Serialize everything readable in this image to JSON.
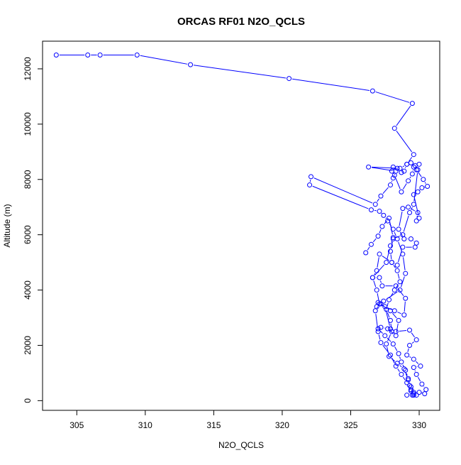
{
  "chart_data": {
    "type": "line",
    "title": "ORCAS RF01 N2O_QCLS",
    "xlabel": "N2O_QCLS",
    "ylabel": "Altitude (m)",
    "xlim": [
      302.5,
      331.5
    ],
    "ylim": [
      -350,
      13000
    ],
    "x_ticks": [
      305,
      310,
      315,
      320,
      325,
      330
    ],
    "y_ticks": [
      0,
      2000,
      4000,
      6000,
      8000,
      10000,
      12000
    ],
    "grid": false,
    "legend": "none",
    "markers": "open circles",
    "color": "#0000ff",
    "series": [
      {
        "points": [
          [
            329.6,
            200
          ],
          [
            329.4,
            350
          ],
          [
            329.3,
            550
          ],
          [
            329.2,
            800
          ],
          [
            329.0,
            1100
          ],
          [
            328.7,
            1400
          ],
          [
            328.5,
            1700
          ],
          [
            328.1,
            2050
          ],
          [
            327.5,
            2350
          ],
          [
            327.0,
            2600
          ],
          [
            327.2,
            2650
          ],
          [
            327.7,
            2600
          ],
          [
            328.3,
            2350
          ],
          [
            328.5,
            2900
          ],
          [
            327.9,
            3250
          ],
          [
            327.0,
            3550
          ],
          [
            326.9,
            3400
          ],
          [
            327.2,
            3500
          ],
          [
            327.4,
            3600
          ],
          [
            328.6,
            4000
          ],
          [
            329.0,
            4600
          ],
          [
            328.8,
            5300
          ],
          [
            328.4,
            5850
          ],
          [
            328.1,
            6200
          ],
          [
            327.7,
            6500
          ],
          [
            327.4,
            6700
          ],
          [
            327.1,
            6850
          ],
          [
            326.5,
            6900
          ],
          [
            322.0,
            7800
          ],
          [
            322.1,
            8100
          ],
          [
            326.8,
            7100
          ],
          [
            327.2,
            7400
          ],
          [
            327.9,
            7800
          ],
          [
            328.1,
            8050
          ],
          [
            328.3,
            8300
          ],
          [
            326.3,
            8450
          ],
          [
            328.6,
            8400
          ],
          [
            329.1,
            8550
          ],
          [
            329.6,
            8900
          ],
          [
            328.2,
            9850
          ],
          [
            329.5,
            10750
          ],
          [
            326.6,
            11200
          ],
          [
            320.5,
            11650
          ],
          [
            313.3,
            12150
          ],
          [
            309.4,
            12500
          ],
          [
            306.7,
            12500
          ],
          [
            305.8,
            12500
          ],
          [
            303.5,
            12500
          ]
        ]
      },
      {
        "points": [
          [
            329.1,
            200
          ],
          [
            329.6,
            250
          ],
          [
            330.0,
            300
          ],
          [
            330.4,
            250
          ],
          [
            330.5,
            400
          ],
          [
            330.2,
            600
          ],
          [
            329.8,
            950
          ],
          [
            329.6,
            1200
          ],
          [
            330.1,
            1250
          ],
          [
            329.6,
            1500
          ],
          [
            329.1,
            1650
          ],
          [
            329.3,
            2000
          ],
          [
            329.8,
            2200
          ],
          [
            329.3,
            2550
          ],
          [
            328.3,
            2500
          ],
          [
            327.9,
            2600
          ],
          [
            327.5,
            3400
          ],
          [
            328.2,
            3250
          ],
          [
            328.9,
            3100
          ],
          [
            329.0,
            3700
          ],
          [
            328.3,
            4150
          ],
          [
            327.3,
            4150
          ],
          [
            327.1,
            4450
          ],
          [
            326.6,
            4450
          ],
          [
            326.9,
            4700
          ],
          [
            327.1,
            5300
          ],
          [
            328.0,
            5000
          ],
          [
            328.4,
            4900
          ],
          [
            328.8,
            5550
          ],
          [
            329.7,
            5550
          ],
          [
            329.8,
            5700
          ],
          [
            329.4,
            5850
          ],
          [
            328.9,
            5850
          ],
          [
            328.5,
            6200
          ],
          [
            328.8,
            6950
          ],
          [
            329.2,
            7000
          ],
          [
            329.9,
            6800
          ],
          [
            329.8,
            6500
          ],
          [
            330.0,
            6600
          ],
          [
            329.6,
            7450
          ],
          [
            329.9,
            7550
          ],
          [
            330.2,
            7700
          ],
          [
            330.6,
            7750
          ],
          [
            330.3,
            8000
          ],
          [
            329.8,
            8350
          ],
          [
            330.0,
            8550
          ],
          [
            329.7,
            8500
          ],
          [
            329.4,
            8600
          ],
          [
            329.1,
            8550
          ],
          [
            328.9,
            8300
          ],
          [
            328.7,
            8250
          ],
          [
            328.4,
            8400
          ],
          [
            328.1,
            8450
          ],
          [
            328.0,
            8300
          ],
          [
            328.2,
            8150
          ],
          [
            328.7,
            7550
          ],
          [
            329.2,
            7950
          ],
          [
            329.5,
            8200
          ],
          [
            329.6,
            8450
          ],
          [
            329.9,
            8350
          ],
          [
            329.6,
            7100
          ],
          [
            329.3,
            6800
          ],
          [
            328.8,
            6000
          ],
          [
            328.1,
            5850
          ],
          [
            327.9,
            5400
          ],
          [
            328.0,
            5000
          ],
          [
            328.4,
            4700
          ],
          [
            328.6,
            4300
          ],
          [
            328.2,
            4000
          ],
          [
            327.8,
            3650
          ],
          [
            327.6,
            3300
          ],
          [
            327.9,
            2900
          ],
          [
            328.0,
            2500
          ],
          [
            327.6,
            2050
          ],
          [
            327.8,
            1600
          ],
          [
            328.4,
            1350
          ],
          [
            328.9,
            1150
          ],
          [
            329.2,
            750
          ],
          [
            329.4,
            500
          ],
          [
            329.5,
            200
          ]
        ]
      },
      {
        "points": [
          [
            326.1,
            5350
          ],
          [
            326.5,
            5650
          ],
          [
            327.0,
            5950
          ],
          [
            327.3,
            6300
          ],
          [
            327.8,
            6600
          ],
          [
            328.1,
            5900
          ],
          [
            327.9,
            5600
          ],
          [
            327.6,
            5000
          ],
          [
            326.6,
            4450
          ],
          [
            326.9,
            4000
          ],
          [
            327.1,
            3500
          ],
          [
            326.8,
            3250
          ],
          [
            327.0,
            2500
          ],
          [
            327.2,
            2100
          ],
          [
            327.9,
            1650
          ],
          [
            328.3,
            1250
          ],
          [
            328.7,
            950
          ],
          [
            329.1,
            650
          ],
          [
            329.4,
            400
          ],
          [
            329.6,
            300
          ],
          [
            329.8,
            200
          ]
        ]
      }
    ]
  }
}
